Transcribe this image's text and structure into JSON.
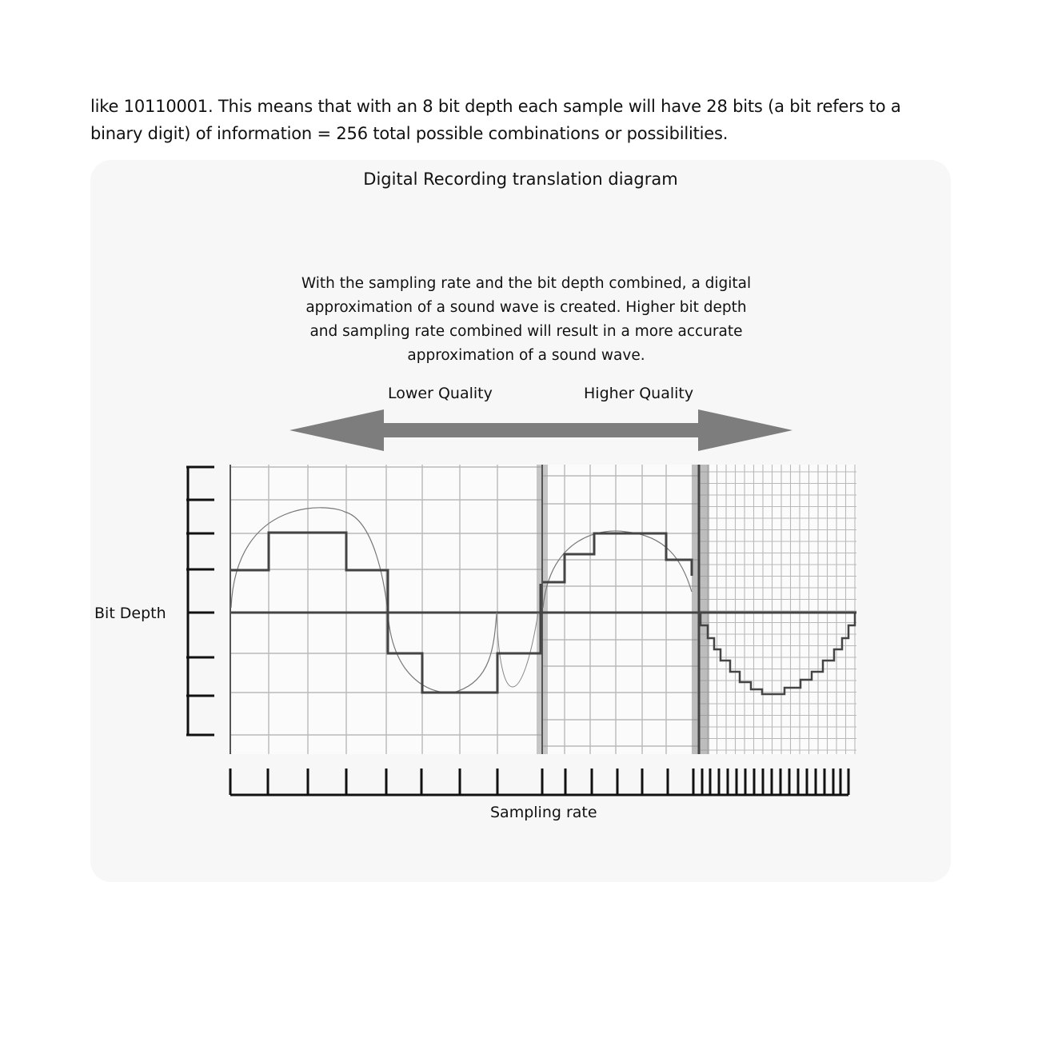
{
  "intro_text": "like 10110001. This means that with an 8 bit depth each sample will have 28 bits (a bit refers to a binary digit) of information = 256 total possible combinations or possibilities.",
  "figure": {
    "title": "Digital Recording translation diagram",
    "caption": "With the sampling rate and the bit depth combined, a digital approximation of a sound wave is created. Higher bit depth and sampling rate combined will result in a more accurate approximation of a sound wave.",
    "lower_quality_label": "Lower Quality",
    "higher_quality_label": "Higher Quality",
    "bit_depth_label": "Bit Depth",
    "sampling_rate_label": "Sampling rate",
    "colors": {
      "arrow": "#7d7d7d",
      "panel": "#f7f7f7",
      "grid": "#b9b9b9",
      "wave": "#444444"
    },
    "sections": [
      {
        "name": "low",
        "sampling_ticks": 8,
        "bit_levels": 7
      },
      {
        "name": "medium",
        "sampling_ticks": 6,
        "bit_levels": 7
      },
      {
        "name": "high",
        "sampling_ticks": 18,
        "bit_levels": 14
      }
    ]
  }
}
